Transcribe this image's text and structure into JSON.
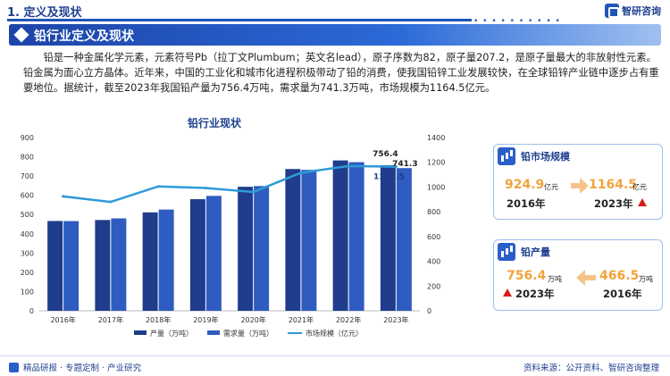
{
  "header": {
    "section_title": "1. 定义及现状",
    "dots": "• • • • • • • • • •",
    "logo_text": "智研咨询"
  },
  "banner": {
    "title": "铅行业定义及现状"
  },
  "paragraph": "铅是一种金属化学元素，元素符号Pb（拉丁文Plumbum；英文名lead），原子序数为82，原子量207.2，是原子量最大的非放射性元素。铅金属为面心立方晶体。近年来，中国的工业化和城市化进程积极带动了铅的消费，使我国铅锌工业发展较快，在全球铅锌产业链中逐步占有重要地位。据统计，截至2023年我国铅产量为756.4万吨，需求量为741.3万吨，市场规模为1164.5亿元。",
  "chart_data": {
    "type": "bar",
    "title": "铅行业现状",
    "categories": [
      "2016年",
      "2017年",
      "2018年",
      "2019年",
      "2020年",
      "2021年",
      "2022年",
      "2023年"
    ],
    "series": [
      {
        "name": "产量（万吨）",
        "type": "bar",
        "axis": "left",
        "color": "#1f3d8c",
        "values": [
          466.5,
          471.6,
          511.3,
          579.7,
          644.3,
          736.5,
          781.1,
          756.4
        ]
      },
      {
        "name": "需求量（万吨）",
        "type": "bar",
        "axis": "left",
        "color": "#2e5cc0",
        "values": [
          466.0,
          480.0,
          526.0,
          597.0,
          648.0,
          732.0,
          772.0,
          741.3
        ]
      },
      {
        "name": "市场规模（亿元）",
        "type": "line",
        "axis": "right",
        "color": "#2f9ad8",
        "values": [
          924.9,
          880.0,
          1005.0,
          992.0,
          960.0,
          1115.0,
          1170.0,
          1164.5
        ]
      }
    ],
    "y_left": {
      "min": 0,
      "max": 900,
      "ticks": [
        0,
        100,
        200,
        300,
        400,
        500,
        600,
        700,
        800,
        900
      ]
    },
    "y_right": {
      "min": 0,
      "max": 1400,
      "ticks": [
        0,
        200,
        400,
        600,
        800,
        1000,
        1200,
        1400
      ]
    },
    "data_labels": {
      "production_2023": "756.4",
      "demand_2023": "741.3",
      "market_2023": "1164.5"
    },
    "legend_position": "bottom",
    "grid": false
  },
  "cards": {
    "market": {
      "title": "铅市场规模",
      "from_value": "924.9",
      "from_unit": "亿元",
      "from_year": "2016年",
      "to_value": "1164.5",
      "to_unit": "亿元",
      "to_year": "2023年"
    },
    "production": {
      "title": "铅产量",
      "left_value": "756.4",
      "left_unit": "万吨",
      "left_year": "2023年",
      "right_value": "466.5",
      "right_unit": "万吨",
      "right_year": "2016年"
    }
  },
  "footer": {
    "left": "精品研报 · 专题定制 · 产业研究",
    "right": "资料来源：公开资料、智研咨询整理"
  }
}
